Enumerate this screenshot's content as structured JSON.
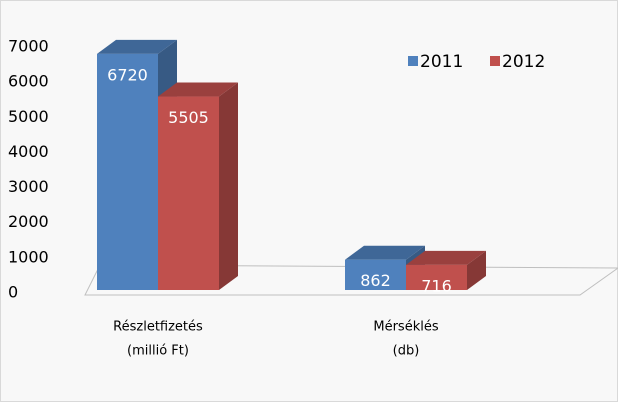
{
  "chart_data": {
    "type": "bar3d",
    "categories": [
      [
        "Részletfizetés",
        "(millió Ft)"
      ],
      [
        "Mérséklés",
        "(db)"
      ]
    ],
    "series": [
      {
        "name": "2011",
        "color": "#4f81bd",
        "values": [
          6720,
          862
        ]
      },
      {
        "name": "2012",
        "color": "#c0504d",
        "values": [
          5505,
          716
        ]
      }
    ],
    "ylim": [
      0,
      7000
    ],
    "yticks": [
      0,
      1000,
      2000,
      3000,
      4000,
      5000,
      6000,
      7000
    ],
    "legend": "top-right"
  }
}
